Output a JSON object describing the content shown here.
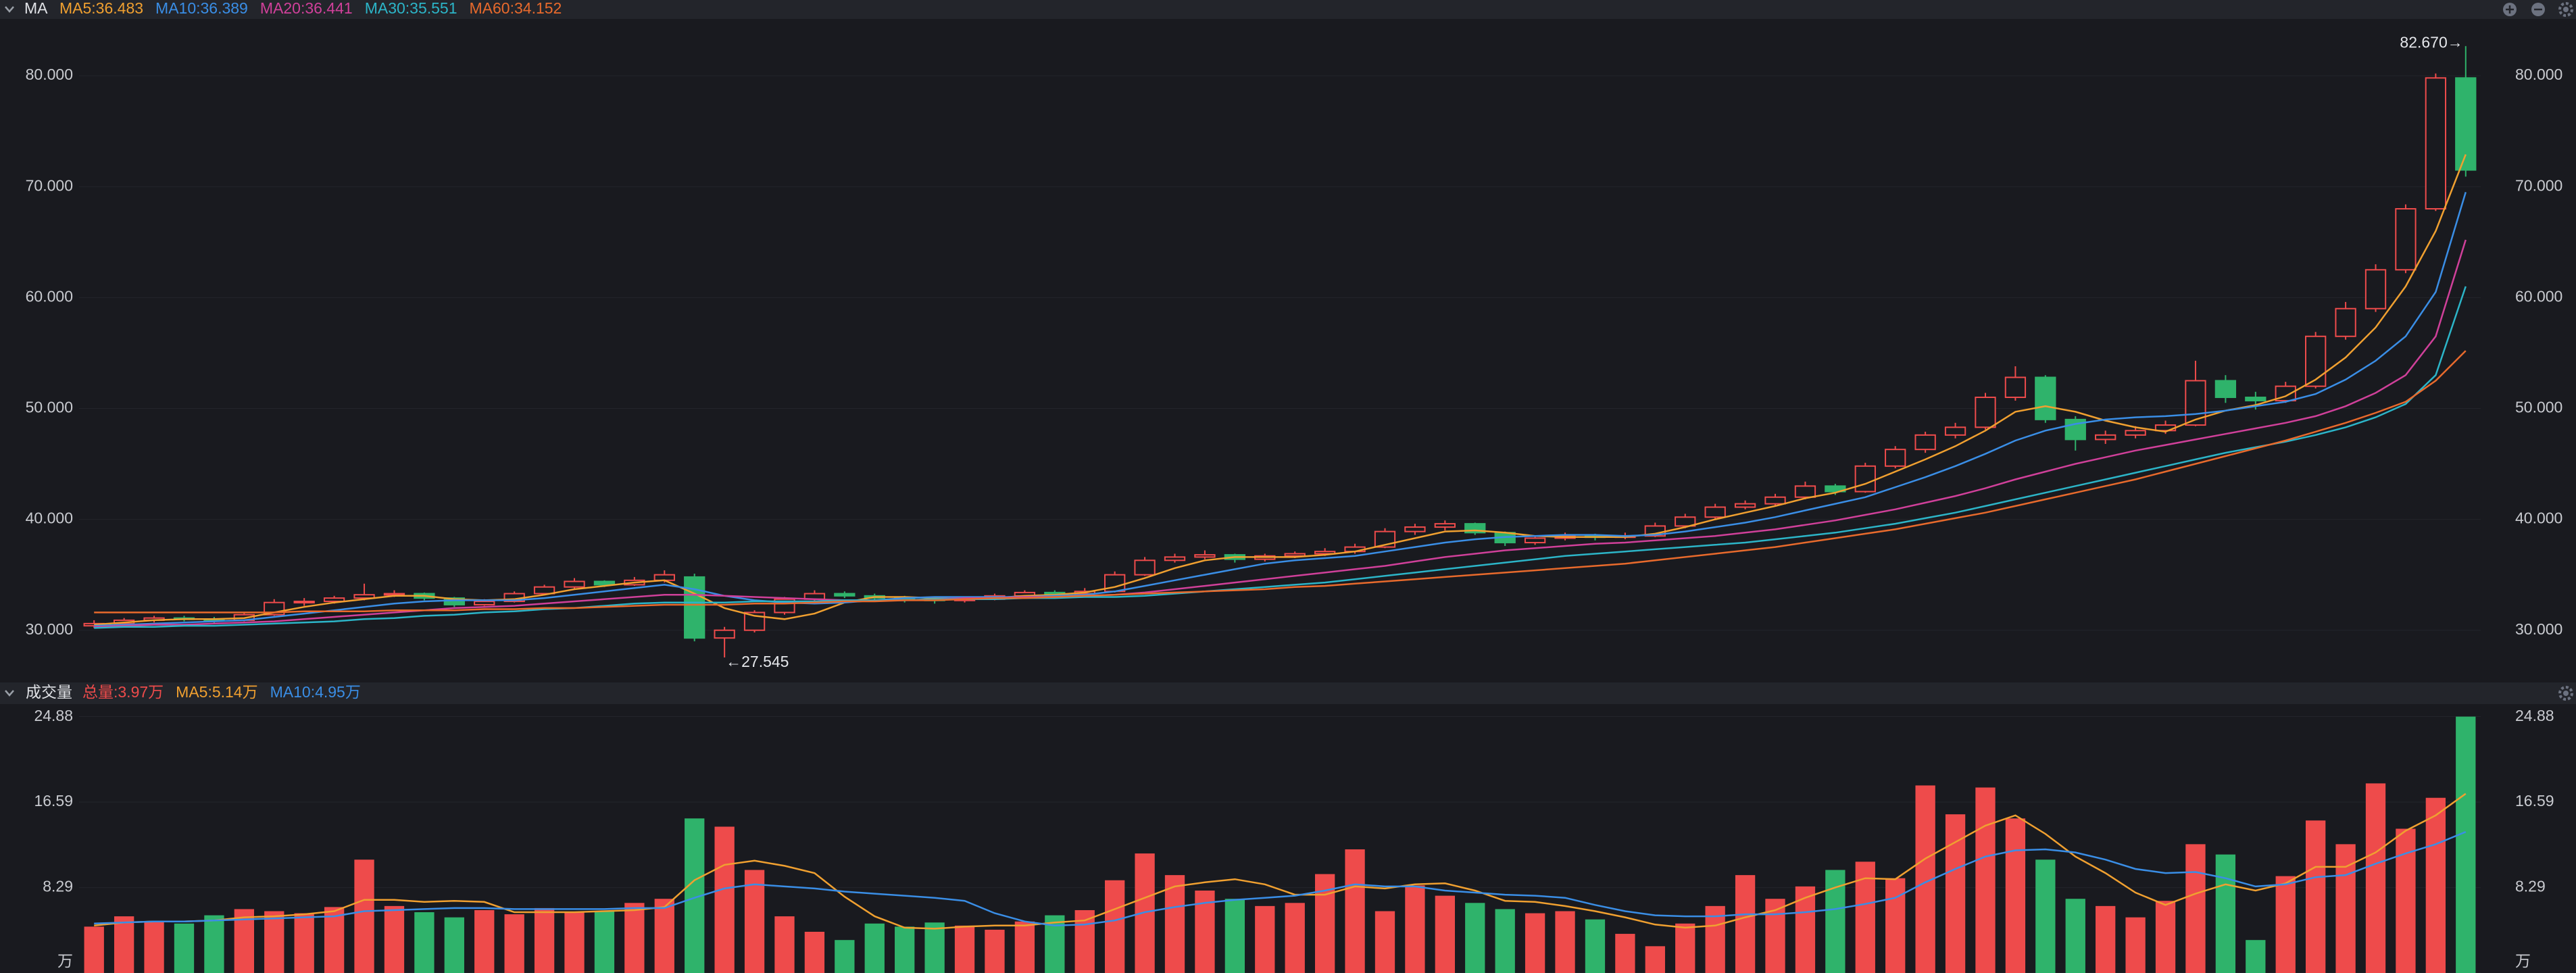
{
  "chart_data": [
    {
      "type": "candlestick",
      "title": "MA",
      "up_color": "#ee4b4b",
      "down_color": "#2fb36b",
      "ylim": [
        25.9,
        85.0
      ],
      "yticks": [
        {
          "value": 30,
          "label": "30.000"
        },
        {
          "value": 40,
          "label": "40.000"
        },
        {
          "value": 50,
          "label": "50.000"
        },
        {
          "value": 60,
          "label": "60.000"
        },
        {
          "value": 70,
          "label": "70.000"
        },
        {
          "value": 80,
          "label": "80.000"
        }
      ],
      "annotations": [
        {
          "text": "82.670→",
          "value": 82.67,
          "at": "high"
        },
        {
          "text": "←27.545",
          "value": 27.545,
          "at": "low"
        }
      ],
      "ohlc": [
        [
          30.4,
          30.9,
          30.2,
          30.6
        ],
        [
          30.6,
          31.1,
          30.5,
          30.9
        ],
        [
          30.9,
          31.3,
          30.7,
          31.1
        ],
        [
          31.1,
          31.3,
          30.8,
          31.0
        ],
        [
          31.0,
          31.2,
          30.6,
          30.9
        ],
        [
          30.9,
          31.6,
          30.8,
          31.4
        ],
        [
          31.4,
          32.8,
          31.3,
          32.5
        ],
        [
          32.5,
          32.9,
          32.2,
          32.6
        ],
        [
          32.6,
          33.1,
          32.4,
          32.9
        ],
        [
          32.9,
          34.2,
          32.7,
          33.2
        ],
        [
          33.2,
          33.6,
          33.0,
          33.3
        ],
        [
          33.3,
          33.4,
          32.7,
          32.9
        ],
        [
          32.9,
          33.0,
          32.1,
          32.3
        ],
        [
          32.3,
          32.8,
          32.2,
          32.6
        ],
        [
          32.6,
          33.5,
          32.5,
          33.3
        ],
        [
          33.3,
          34.1,
          33.2,
          33.9
        ],
        [
          33.9,
          34.7,
          33.7,
          34.4
        ],
        [
          34.4,
          34.5,
          33.9,
          34.1
        ],
        [
          34.1,
          34.8,
          34.0,
          34.5
        ],
        [
          34.5,
          35.4,
          34.3,
          35.0
        ],
        [
          34.8,
          35.1,
          29.0,
          29.3
        ],
        [
          29.3,
          30.3,
          27.545,
          30.0
        ],
        [
          30.0,
          31.8,
          29.8,
          31.6
        ],
        [
          31.6,
          33.0,
          31.4,
          32.8
        ],
        [
          32.8,
          33.6,
          32.6,
          33.3
        ],
        [
          33.3,
          33.5,
          32.9,
          33.1
        ],
        [
          33.1,
          33.3,
          32.6,
          32.9
        ],
        [
          32.9,
          33.1,
          32.5,
          32.8
        ],
        [
          32.8,
          33.0,
          32.4,
          32.7
        ],
        [
          32.7,
          33.0,
          32.5,
          32.8
        ],
        [
          32.8,
          33.3,
          32.7,
          33.1
        ],
        [
          33.1,
          33.6,
          33.0,
          33.4
        ],
        [
          33.4,
          33.6,
          33.1,
          33.3
        ],
        [
          33.3,
          33.8,
          33.2,
          33.5
        ],
        [
          33.5,
          35.3,
          33.4,
          35.0
        ],
        [
          35.0,
          36.6,
          34.9,
          36.3
        ],
        [
          36.3,
          36.9,
          36.1,
          36.6
        ],
        [
          36.6,
          37.2,
          36.4,
          36.8
        ],
        [
          36.8,
          36.9,
          36.1,
          36.4
        ],
        [
          36.4,
          36.9,
          36.2,
          36.7
        ],
        [
          36.7,
          37.1,
          36.5,
          36.9
        ],
        [
          36.9,
          37.4,
          36.7,
          37.1
        ],
        [
          37.1,
          37.8,
          36.9,
          37.5
        ],
        [
          37.5,
          39.2,
          37.4,
          38.9
        ],
        [
          38.9,
          39.6,
          38.6,
          39.3
        ],
        [
          39.3,
          39.9,
          39.0,
          39.6
        ],
        [
          39.6,
          39.7,
          38.6,
          38.8
        ],
        [
          38.8,
          38.9,
          37.6,
          37.9
        ],
        [
          37.9,
          38.5,
          37.7,
          38.3
        ],
        [
          38.3,
          38.8,
          38.1,
          38.5
        ],
        [
          38.5,
          38.7,
          38.1,
          38.4
        ],
        [
          38.4,
          38.8,
          38.2,
          38.5
        ],
        [
          38.5,
          39.7,
          38.4,
          39.4
        ],
        [
          39.4,
          40.5,
          39.2,
          40.2
        ],
        [
          40.2,
          41.4,
          40.0,
          41.1
        ],
        [
          41.1,
          41.7,
          40.9,
          41.4
        ],
        [
          41.4,
          42.3,
          41.2,
          42.0
        ],
        [
          42.0,
          43.4,
          41.8,
          43.0
        ],
        [
          43.0,
          43.2,
          42.2,
          42.5
        ],
        [
          42.5,
          45.1,
          42.4,
          44.8
        ],
        [
          44.8,
          46.6,
          44.6,
          46.3
        ],
        [
          46.3,
          47.9,
          46.0,
          47.6
        ],
        [
          47.6,
          48.7,
          47.3,
          48.3
        ],
        [
          48.3,
          51.4,
          48.1,
          51.0
        ],
        [
          51.0,
          53.8,
          50.7,
          52.8
        ],
        [
          52.8,
          53.0,
          48.7,
          49.0
        ],
        [
          49.0,
          49.3,
          46.2,
          47.2
        ],
        [
          47.2,
          48.0,
          46.8,
          47.6
        ],
        [
          47.6,
          48.4,
          47.3,
          48.0
        ],
        [
          48.0,
          48.9,
          47.7,
          48.5
        ],
        [
          48.5,
          54.3,
          48.4,
          52.5
        ],
        [
          52.5,
          53.0,
          50.5,
          51.0
        ],
        [
          51.0,
          51.5,
          49.9,
          50.7
        ],
        [
          50.7,
          52.4,
          50.5,
          52.0
        ],
        [
          52.0,
          56.9,
          51.8,
          56.5
        ],
        [
          56.5,
          59.6,
          56.2,
          59.0
        ],
        [
          59.0,
          63.0,
          58.7,
          62.5
        ],
        [
          62.5,
          68.4,
          62.2,
          68.0
        ],
        [
          68.0,
          80.2,
          67.8,
          79.8
        ],
        [
          79.8,
          82.67,
          70.9,
          71.5
        ]
      ],
      "series": [
        {
          "name": "MA5:36.483",
          "color": "#f0a030",
          "values": [
            30.5,
            30.7,
            30.9,
            31.0,
            31.0,
            31.1,
            31.6,
            32.1,
            32.5,
            32.8,
            33.1,
            33.1,
            32.8,
            32.7,
            32.8,
            33.2,
            33.7,
            34.0,
            34.3,
            34.5,
            33.3,
            32.0,
            31.3,
            31.0,
            31.5,
            32.5,
            33.0,
            33.0,
            32.9,
            32.8,
            32.9,
            33.1,
            33.2,
            33.4,
            33.9,
            34.7,
            35.6,
            36.3,
            36.6,
            36.6,
            36.6,
            36.8,
            37.1,
            37.7,
            38.3,
            38.9,
            39.0,
            38.8,
            38.5,
            38.4,
            38.4,
            38.4,
            38.7,
            39.3,
            40.0,
            40.6,
            41.2,
            41.9,
            42.4,
            43.2,
            44.3,
            45.4,
            46.6,
            48.0,
            49.7,
            50.2,
            49.7,
            48.9,
            48.3,
            47.9,
            49.0,
            49.8,
            50.3,
            51.1,
            52.6,
            54.6,
            57.3,
            61.0,
            66.0,
            72.9
          ]
        },
        {
          "name": "MA10:36.389",
          "color": "#3a8ee6",
          "values": [
            30.4,
            30.5,
            30.6,
            30.7,
            30.8,
            30.9,
            31.2,
            31.5,
            31.8,
            32.1,
            32.4,
            32.6,
            32.7,
            32.7,
            32.7,
            32.9,
            33.2,
            33.5,
            33.8,
            34.1,
            33.7,
            33.1,
            32.7,
            32.5,
            32.4,
            32.5,
            32.7,
            32.9,
            33.0,
            33.0,
            33.0,
            33.0,
            33.1,
            33.2,
            33.5,
            34.0,
            34.5,
            35.0,
            35.5,
            36.0,
            36.3,
            36.5,
            36.7,
            37.1,
            37.5,
            37.9,
            38.2,
            38.4,
            38.5,
            38.6,
            38.6,
            38.5,
            38.6,
            38.9,
            39.3,
            39.7,
            40.2,
            40.8,
            41.4,
            42.0,
            42.9,
            43.8,
            44.8,
            45.9,
            47.1,
            48.0,
            48.6,
            49.0,
            49.2,
            49.3,
            49.5,
            49.8,
            50.2,
            50.6,
            51.3,
            52.6,
            54.3,
            56.5,
            60.5,
            69.5
          ]
        },
        {
          "name": "MA20:36.441",
          "color": "#d0409a",
          "values": [
            30.3,
            30.4,
            30.5,
            30.5,
            30.6,
            30.7,
            30.8,
            31.0,
            31.2,
            31.4,
            31.6,
            31.8,
            32.0,
            32.1,
            32.2,
            32.4,
            32.6,
            32.8,
            33.0,
            33.2,
            33.2,
            33.1,
            33.0,
            32.9,
            32.8,
            32.7,
            32.7,
            32.7,
            32.8,
            32.9,
            32.9,
            33.0,
            33.0,
            33.1,
            33.2,
            33.4,
            33.7,
            34.0,
            34.3,
            34.6,
            34.9,
            35.2,
            35.5,
            35.8,
            36.2,
            36.6,
            36.9,
            37.2,
            37.4,
            37.6,
            37.8,
            37.9,
            38.1,
            38.3,
            38.5,
            38.8,
            39.1,
            39.5,
            39.9,
            40.4,
            40.9,
            41.5,
            42.1,
            42.8,
            43.6,
            44.3,
            45.0,
            45.6,
            46.2,
            46.7,
            47.2,
            47.7,
            48.2,
            48.7,
            49.3,
            50.2,
            51.4,
            53.0,
            56.5,
            65.2
          ]
        },
        {
          "name": "MA30:35.551",
          "color": "#2cb5c8",
          "values": [
            30.2,
            30.3,
            30.3,
            30.4,
            30.4,
            30.5,
            30.6,
            30.7,
            30.8,
            31.0,
            31.1,
            31.3,
            31.4,
            31.6,
            31.7,
            31.9,
            32.0,
            32.2,
            32.4,
            32.5,
            32.5,
            32.5,
            32.6,
            32.6,
            32.6,
            32.7,
            32.7,
            32.7,
            32.8,
            32.8,
            32.8,
            32.9,
            32.9,
            33.0,
            33.0,
            33.1,
            33.3,
            33.5,
            33.7,
            33.9,
            34.1,
            34.3,
            34.6,
            34.9,
            35.2,
            35.5,
            35.8,
            36.1,
            36.4,
            36.7,
            36.9,
            37.1,
            37.3,
            37.5,
            37.7,
            37.9,
            38.2,
            38.5,
            38.8,
            39.2,
            39.6,
            40.1,
            40.6,
            41.2,
            41.8,
            42.4,
            43.0,
            43.6,
            44.2,
            44.8,
            45.4,
            46.0,
            46.5,
            47.0,
            47.6,
            48.3,
            49.2,
            50.4,
            53.0,
            61.0
          ]
        },
        {
          "name": "MA60:34.152",
          "color": "#e86a2c",
          "values": [
            31.6,
            31.6,
            31.6,
            31.6,
            31.6,
            31.6,
            31.6,
            31.7,
            31.7,
            31.7,
            31.8,
            31.8,
            31.8,
            31.9,
            31.9,
            32.0,
            32.0,
            32.1,
            32.2,
            32.3,
            32.3,
            32.3,
            32.4,
            32.4,
            32.5,
            32.6,
            32.6,
            32.7,
            32.7,
            32.8,
            32.9,
            32.9,
            33.0,
            33.1,
            33.2,
            33.3,
            33.4,
            33.5,
            33.6,
            33.7,
            33.9,
            34.0,
            34.2,
            34.4,
            34.6,
            34.8,
            35.0,
            35.2,
            35.4,
            35.6,
            35.8,
            36.0,
            36.3,
            36.6,
            36.9,
            37.2,
            37.5,
            37.9,
            38.3,
            38.7,
            39.1,
            39.6,
            40.1,
            40.6,
            41.2,
            41.8,
            42.4,
            43.0,
            43.6,
            44.3,
            45.0,
            45.7,
            46.4,
            47.1,
            47.9,
            48.7,
            49.6,
            50.6,
            52.5,
            55.2
          ]
        }
      ]
    },
    {
      "type": "bar",
      "title": "成交量",
      "summary": {
        "text": "总量:3.97万",
        "color": "#ee4b4b"
      },
      "ylim": [
        0,
        25.9
      ],
      "yticks": [
        {
          "value": 0,
          "label": "万"
        },
        8.29,
        16.59,
        24.88
      ],
      "values": [
        4.5,
        5.5,
        5.0,
        4.8,
        5.6,
        6.2,
        6.0,
        5.8,
        6.4,
        11.0,
        6.5,
        5.9,
        5.4,
        6.1,
        5.7,
        6.3,
        5.9,
        6.0,
        6.8,
        7.2,
        15.0,
        14.2,
        10.0,
        5.5,
        4.0,
        3.2,
        4.8,
        4.5,
        4.9,
        4.6,
        4.2,
        5.0,
        5.6,
        6.1,
        9.0,
        11.6,
        9.5,
        8.0,
        7.2,
        6.5,
        6.8,
        9.6,
        12.0,
        6.0,
        8.5,
        7.5,
        6.8,
        6.2,
        5.8,
        6.0,
        5.2,
        3.8,
        2.6,
        4.8,
        6.5,
        9.5,
        7.2,
        8.4,
        10.0,
        10.8,
        9.2,
        18.2,
        15.4,
        18.0,
        15.0,
        11.0,
        7.2,
        6.5,
        5.4,
        7.0,
        12.5,
        11.5,
        3.2,
        9.4,
        14.8,
        12.5,
        18.4,
        14.0,
        17.0,
        24.88
      ],
      "series": [
        {
          "name": "MA5:5.14万",
          "color": "#f0a030",
          "values": [
            4.6,
            4.9,
            5.0,
            5.0,
            5.1,
            5.4,
            5.5,
            5.7,
            6.0,
            7.1,
            7.1,
            6.9,
            7.0,
            6.9,
            5.9,
            5.9,
            5.9,
            6.0,
            6.1,
            6.4,
            9.0,
            10.5,
            10.9,
            10.4,
            9.7,
            7.4,
            5.5,
            4.4,
            4.3,
            4.5,
            4.6,
            4.6,
            4.9,
            5.1,
            6.2,
            7.3,
            8.4,
            8.8,
            9.1,
            8.6,
            7.6,
            7.6,
            8.4,
            8.2,
            8.6,
            8.7,
            8.0,
            7.0,
            6.9,
            6.5,
            6.0,
            5.4,
            4.7,
            4.4,
            4.6,
            5.4,
            6.1,
            7.3,
            8.3,
            9.2,
            9.1,
            11.1,
            12.7,
            14.3,
            15.3,
            13.5,
            11.3,
            9.7,
            7.8,
            6.6,
            7.7,
            8.6,
            8.0,
            8.7,
            10.3,
            10.3,
            11.7,
            13.8,
            15.3,
            17.4
          ]
        },
        {
          "name": "MA10:4.95万",
          "color": "#3a8ee6",
          "values": [
            4.8,
            4.9,
            5.0,
            5.0,
            5.1,
            5.2,
            5.3,
            5.4,
            5.5,
            6.0,
            6.1,
            6.2,
            6.3,
            6.3,
            6.2,
            6.2,
            6.2,
            6.2,
            6.3,
            6.3,
            7.3,
            8.2,
            8.6,
            8.4,
            8.2,
            7.9,
            7.7,
            7.5,
            7.3,
            7.0,
            5.8,
            5.0,
            4.6,
            4.7,
            5.1,
            5.9,
            6.4,
            6.8,
            7.1,
            7.3,
            7.5,
            8.0,
            8.6,
            8.4,
            8.4,
            8.0,
            7.8,
            7.6,
            7.5,
            7.3,
            6.6,
            6.0,
            5.6,
            5.5,
            5.5,
            5.7,
            5.7,
            5.9,
            6.2,
            6.7,
            7.3,
            8.8,
            10.1,
            11.3,
            11.9,
            12.0,
            11.7,
            11.0,
            10.1,
            9.7,
            9.8,
            9.2,
            8.4,
            8.6,
            9.3,
            9.5,
            10.6,
            11.6,
            12.5,
            13.7
          ]
        }
      ]
    }
  ]
}
